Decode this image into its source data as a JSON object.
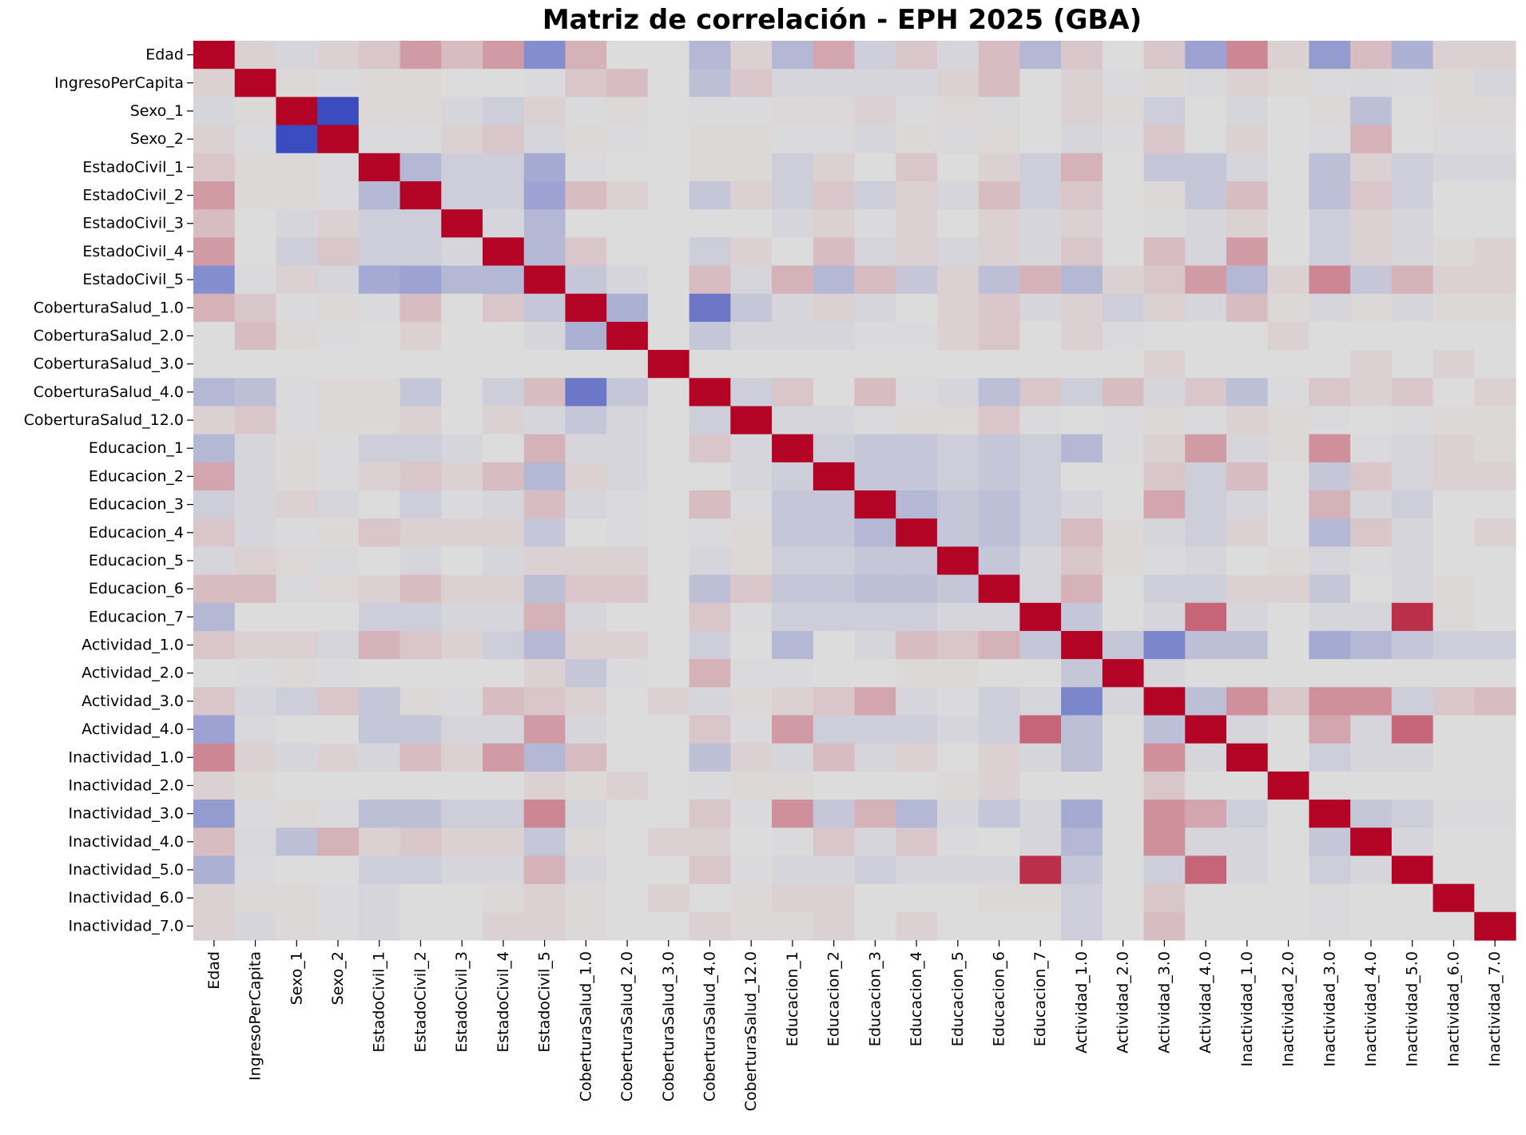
{
  "chart_data": {
    "type": "heatmap",
    "title": "Matriz de correlación - EPH 2025 (GBA)",
    "xlabel": "",
    "ylabel": "",
    "colormap": "coolwarm",
    "colormap_endpoints": {
      "low": "#3b4cc0",
      "mid": "#dddcdc",
      "high": "#b40426"
    },
    "value_range": [
      -1,
      1
    ],
    "colorbar": false,
    "labels": [
      "Edad",
      "IngresoPerCapita",
      "Sexo_1",
      "Sexo_2",
      "EstadoCivil_1",
      "EstadoCivil_2",
      "EstadoCivil_3",
      "EstadoCivil_4",
      "EstadoCivil_5",
      "CoberturaSalud_1.0",
      "CoberturaSalud_2.0",
      "CoberturaSalud_3.0",
      "CoberturaSalud_4.0",
      "CoberturaSalud_12.0",
      "Educacion_1",
      "Educacion_2",
      "Educacion_3",
      "Educacion_4",
      "Educacion_5",
      "Educacion_6",
      "Educacion_7",
      "Actividad_1.0",
      "Actividad_2.0",
      "Actividad_3.0",
      "Actividad_4.0",
      "Inactividad_1.0",
      "Inactividad_2.0",
      "Inactividad_3.0",
      "Inactividad_4.0",
      "Inactividad_5.0",
      "Inactividad_6.0",
      "Inactividad_7.0"
    ],
    "matrix": [
      [
        1,
        0.05,
        -0.05,
        0.05,
        0.1,
        0.3,
        0.15,
        0.3,
        -0.55,
        0.2,
        0,
        0,
        -0.25,
        0.05,
        -0.25,
        0.25,
        -0.1,
        0.1,
        -0.05,
        0.15,
        -0.25,
        0.1,
        0,
        0.1,
        -0.4,
        0.4,
        0.05,
        -0.45,
        0.15,
        -0.3,
        0.05,
        0.05
      ],
      [
        0.05,
        1,
        0.02,
        -0.02,
        0.02,
        0.02,
        0,
        0,
        -0.02,
        0.1,
        0.15,
        0,
        -0.2,
        0.1,
        -0.05,
        -0.05,
        -0.05,
        -0.05,
        0.05,
        0.15,
        0,
        0.05,
        -0.02,
        0.02,
        -0.03,
        0.05,
        0.02,
        -0.02,
        -0.03,
        -0.02,
        0.02,
        -0.05
      ],
      [
        -0.05,
        0.02,
        1,
        -1,
        0.02,
        0.02,
        -0.05,
        -0.1,
        0.05,
        -0.02,
        0.02,
        0,
        -0.02,
        -0.02,
        0.02,
        0.02,
        0.05,
        -0.02,
        0.03,
        -0.03,
        0,
        0.05,
        0.02,
        -0.1,
        0,
        -0.05,
        0,
        0.02,
        -0.2,
        0,
        0.02,
        0.02
      ],
      [
        0.05,
        -0.02,
        -1,
        1,
        -0.02,
        -0.02,
        0.05,
        0.1,
        -0.05,
        0.02,
        -0.02,
        0,
        0.02,
        0.02,
        -0.02,
        -0.02,
        -0.05,
        0.02,
        -0.03,
        0.03,
        0,
        -0.05,
        -0.02,
        0.1,
        0,
        0.05,
        0,
        -0.02,
        0.2,
        0,
        -0.02,
        -0.02
      ],
      [
        0.1,
        0.02,
        0.02,
        -0.02,
        1,
        -0.25,
        -0.1,
        -0.1,
        -0.35,
        -0.02,
        0,
        0,
        0.02,
        0.02,
        -0.1,
        0.05,
        0,
        0.1,
        0,
        0.05,
        -0.1,
        0.2,
        0,
        -0.15,
        -0.15,
        -0.05,
        0,
        -0.2,
        0.05,
        -0.1,
        -0.05,
        -0.05
      ],
      [
        0.3,
        0.02,
        0.02,
        -0.02,
        -0.25,
        1,
        -0.1,
        -0.1,
        -0.4,
        0.15,
        0.05,
        0,
        -0.15,
        0.05,
        -0.1,
        0.1,
        -0.1,
        0.05,
        -0.05,
        0.15,
        -0.1,
        0.1,
        0,
        0.02,
        -0.15,
        0.15,
        0,
        -0.2,
        0.1,
        -0.1,
        0,
        0
      ],
      [
        0.15,
        0,
        -0.05,
        0.05,
        -0.1,
        -0.1,
        1,
        -0.05,
        -0.25,
        0,
        0,
        0,
        0,
        0,
        -0.05,
        0.05,
        -0.02,
        0.05,
        0,
        0.05,
        -0.05,
        0.05,
        0,
        -0.02,
        -0.05,
        0.05,
        0,
        -0.1,
        0.05,
        -0.05,
        0,
        0
      ],
      [
        0.3,
        0,
        -0.1,
        0.1,
        -0.1,
        -0.1,
        -0.05,
        1,
        -0.25,
        0.1,
        0,
        0,
        -0.1,
        0.05,
        0,
        0.15,
        -0.05,
        0.05,
        -0.05,
        0.05,
        -0.05,
        0.1,
        0,
        0.15,
        -0.05,
        0.3,
        0,
        -0.1,
        0.05,
        -0.05,
        0.02,
        0.05
      ],
      [
        -0.55,
        -0.02,
        0.05,
        -0.05,
        -0.35,
        -0.4,
        -0.25,
        -0.25,
        1,
        -0.15,
        -0.05,
        0,
        0.15,
        -0.05,
        0.2,
        -0.25,
        0.15,
        -0.15,
        0.05,
        -0.2,
        0.2,
        -0.25,
        0.05,
        0.1,
        0.3,
        -0.25,
        0.05,
        0.4,
        -0.15,
        0.2,
        0.05,
        0.05
      ],
      [
        0.2,
        0.1,
        -0.02,
        0.02,
        -0.02,
        0.15,
        0,
        0.1,
        -0.15,
        1,
        -0.3,
        0,
        -0.7,
        -0.15,
        -0.05,
        0.05,
        -0.05,
        0,
        0.05,
        0.1,
        -0.05,
        0.05,
        -0.1,
        0.05,
        -0.05,
        0.15,
        0.02,
        -0.05,
        0.02,
        -0.05,
        0.02,
        0.02
      ],
      [
        0,
        0.15,
        0.02,
        -0.02,
        0,
        0.05,
        0,
        0,
        -0.05,
        -0.3,
        1,
        0,
        -0.15,
        -0.05,
        -0.05,
        -0.05,
        -0.02,
        -0.02,
        0.05,
        0.1,
        0,
        0.05,
        -0.02,
        0,
        0,
        0,
        0.05,
        0,
        0,
        0,
        0,
        0
      ],
      [
        0,
        0,
        0,
        0,
        0,
        0,
        0,
        0,
        0,
        0,
        0,
        1,
        0,
        0,
        0,
        0,
        0,
        0,
        0,
        0,
        0,
        0,
        0,
        0.05,
        0,
        0,
        0,
        0,
        0.05,
        0,
        0.05,
        0
      ],
      [
        -0.25,
        -0.2,
        -0.02,
        0.02,
        0.02,
        -0.15,
        0,
        -0.1,
        0.15,
        -0.7,
        -0.15,
        0,
        1,
        -0.1,
        0.1,
        0,
        0.15,
        -0.02,
        -0.05,
        -0.2,
        0.1,
        -0.1,
        0.15,
        -0.05,
        0.1,
        -0.2,
        -0.02,
        0.1,
        0.05,
        0.1,
        0,
        0.05
      ],
      [
        0.05,
        0.1,
        -0.02,
        0.02,
        0.02,
        0.05,
        0,
        0.05,
        -0.05,
        -0.15,
        -0.05,
        0,
        -0.1,
        1,
        -0.05,
        -0.05,
        -0.02,
        0.02,
        0.02,
        0.1,
        -0.02,
        0,
        -0.02,
        0.02,
        -0.02,
        0.05,
        0.02,
        -0.02,
        0,
        -0.02,
        0.02,
        0.02
      ],
      [
        -0.25,
        -0.05,
        0.02,
        -0.02,
        -0.1,
        -0.1,
        -0.05,
        0,
        0.2,
        -0.05,
        -0.05,
        0,
        0.1,
        -0.05,
        1,
        -0.1,
        -0.15,
        -0.15,
        -0.1,
        -0.15,
        -0.1,
        -0.25,
        -0.02,
        0.05,
        0.3,
        -0.05,
        0.02,
        0.35,
        -0.02,
        -0.05,
        0.05,
        0.02
      ],
      [
        0.25,
        -0.05,
        0.02,
        -0.02,
        0.05,
        0.1,
        0.05,
        0.15,
        -0.25,
        0.05,
        -0.05,
        0,
        0,
        -0.05,
        -0.1,
        1,
        -0.15,
        -0.15,
        -0.1,
        -0.15,
        -0.1,
        0,
        0,
        0.1,
        -0.1,
        0.15,
        0,
        -0.15,
        0.1,
        -0.05,
        0.05,
        0.05
      ],
      [
        -0.1,
        -0.05,
        0.05,
        -0.05,
        0,
        -0.1,
        -0.02,
        -0.05,
        0.15,
        -0.05,
        -0.02,
        0,
        0.15,
        -0.02,
        -0.15,
        -0.15,
        1,
        -0.25,
        -0.15,
        -0.2,
        -0.1,
        -0.05,
        0,
        0.25,
        -0.1,
        -0.05,
        0,
        0.2,
        -0.05,
        -0.1,
        0,
        0
      ],
      [
        0.1,
        -0.05,
        -0.02,
        0.02,
        0.1,
        0.05,
        0.05,
        0.05,
        -0.15,
        0,
        -0.02,
        0,
        -0.02,
        0.02,
        -0.15,
        -0.15,
        -0.25,
        1,
        -0.15,
        -0.2,
        -0.1,
        0.15,
        0.02,
        -0.05,
        -0.1,
        0.05,
        0,
        -0.25,
        0.1,
        -0.05,
        0,
        0.05
      ],
      [
        -0.05,
        0.05,
        0.03,
        -0.03,
        0,
        -0.05,
        0,
        -0.05,
        0.05,
        0.05,
        0.05,
        0,
        -0.05,
        0.02,
        -0.1,
        -0.1,
        -0.15,
        -0.15,
        1,
        -0.15,
        -0.05,
        0.1,
        0.02,
        -0.02,
        -0.05,
        0,
        0.02,
        -0.05,
        -0.02,
        -0.05,
        0,
        0
      ],
      [
        0.15,
        0.15,
        -0.03,
        0.03,
        0.05,
        0.15,
        0.05,
        0.05,
        -0.2,
        0.1,
        0.1,
        0,
        -0.2,
        0.1,
        -0.15,
        -0.15,
        -0.2,
        -0.2,
        -0.15,
        1,
        -0.05,
        0.2,
        0,
        -0.1,
        -0.1,
        0.05,
        0.05,
        -0.15,
        0,
        -0.05,
        0.02,
        0
      ],
      [
        -0.25,
        0,
        0,
        0,
        -0.1,
        -0.1,
        -0.05,
        -0.05,
        0.2,
        -0.05,
        0,
        0,
        0.1,
        -0.02,
        -0.1,
        -0.1,
        -0.1,
        -0.1,
        -0.05,
        -0.05,
        1,
        -0.15,
        0,
        -0.05,
        0.55,
        -0.05,
        0,
        -0.05,
        -0.05,
        0.8,
        0.02,
        0
      ],
      [
        0.1,
        0.05,
        0.05,
        -0.05,
        0.2,
        0.1,
        0.05,
        -0.1,
        -0.25,
        0.05,
        0.05,
        0,
        -0.1,
        0,
        -0.25,
        0,
        -0.05,
        0.15,
        0.1,
        0.2,
        -0.15,
        1,
        -0.15,
        -0.6,
        -0.2,
        -0.2,
        0,
        -0.35,
        -0.25,
        -0.15,
        -0.1,
        -0.1
      ],
      [
        0,
        -0.02,
        0.02,
        -0.02,
        0,
        0,
        0,
        0,
        0.05,
        -0.15,
        -0.02,
        0,
        0.2,
        -0.02,
        -0.02,
        0,
        0,
        0.02,
        0.02,
        0,
        0,
        -0.15,
        1,
        -0.05,
        0,
        0,
        0,
        0,
        0,
        0,
        0,
        0
      ],
      [
        0.1,
        -0.05,
        -0.1,
        0.1,
        -0.15,
        0.02,
        -0.02,
        0.15,
        0.1,
        0.05,
        0,
        0.05,
        -0.05,
        0.02,
        0.05,
        0.1,
        0.25,
        -0.05,
        -0.02,
        -0.1,
        -0.05,
        -0.6,
        -0.05,
        1,
        -0.2,
        0.35,
        0.1,
        0.35,
        0.35,
        -0.1,
        0.1,
        0.15
      ],
      [
        -0.4,
        -0.03,
        0,
        0,
        -0.15,
        -0.15,
        -0.05,
        -0.05,
        0.3,
        -0.05,
        0,
        0,
        0.1,
        -0.02,
        0.3,
        -0.1,
        -0.1,
        -0.1,
        -0.05,
        -0.1,
        0.55,
        -0.2,
        0,
        -0.2,
        1,
        -0.05,
        0,
        0.25,
        -0.05,
        0.55,
        0,
        0
      ],
      [
        0.4,
        0.05,
        -0.05,
        0.05,
        -0.05,
        0.15,
        0.05,
        0.3,
        -0.25,
        0.15,
        0,
        0,
        -0.2,
        0.05,
        -0.05,
        0.15,
        -0.05,
        0.05,
        0,
        0.05,
        -0.05,
        -0.2,
        0,
        0.35,
        -0.05,
        1,
        0,
        -0.1,
        -0.05,
        -0.05,
        0,
        0
      ],
      [
        0.05,
        0.02,
        0,
        0,
        0,
        0,
        0,
        0,
        0.05,
        0.02,
        0.05,
        0,
        -0.02,
        0.02,
        0.02,
        0,
        0,
        0,
        0.02,
        0.05,
        0,
        0,
        0,
        0.1,
        0,
        0,
        1,
        0,
        0,
        0,
        0,
        0
      ],
      [
        -0.45,
        -0.02,
        0.02,
        -0.02,
        -0.2,
        -0.2,
        -0.1,
        -0.1,
        0.4,
        -0.05,
        0,
        0,
        0.1,
        -0.02,
        0.35,
        -0.15,
        0.2,
        -0.25,
        -0.05,
        -0.15,
        -0.05,
        -0.35,
        0,
        0.35,
        0.25,
        -0.1,
        0,
        1,
        -0.15,
        -0.1,
        -0.02,
        -0.02
      ],
      [
        0.15,
        -0.03,
        -0.2,
        0.2,
        0.05,
        0.1,
        0.05,
        0.05,
        -0.15,
        0.02,
        0,
        0.05,
        0.05,
        0,
        -0.02,
        0.1,
        -0.05,
        0.1,
        -0.02,
        0,
        -0.05,
        -0.25,
        0,
        0.35,
        -0.05,
        -0.05,
        0,
        -0.15,
        1,
        -0.05,
        0,
        0
      ],
      [
        -0.3,
        -0.02,
        0,
        0,
        -0.1,
        -0.1,
        -0.05,
        -0.05,
        0.2,
        -0.05,
        0,
        0,
        0.1,
        -0.02,
        -0.05,
        -0.05,
        -0.1,
        -0.05,
        -0.05,
        -0.05,
        0.8,
        -0.15,
        0,
        -0.1,
        0.55,
        -0.05,
        0,
        -0.1,
        -0.05,
        1,
        0,
        0
      ],
      [
        0.05,
        0.02,
        0.02,
        -0.02,
        -0.05,
        0,
        0,
        0.02,
        0.05,
        0.02,
        0,
        0.05,
        0,
        0.02,
        0.05,
        0.05,
        0,
        0,
        0,
        0.02,
        0.02,
        -0.1,
        0,
        0.1,
        0,
        0,
        0,
        -0.02,
        0,
        0,
        1,
        0
      ],
      [
        0.05,
        -0.05,
        0.02,
        -0.02,
        -0.05,
        0,
        0,
        0.05,
        0.05,
        0.02,
        0,
        0,
        0.05,
        0.02,
        0.02,
        0.05,
        0,
        0.05,
        0,
        0,
        0,
        -0.1,
        0,
        0.15,
        0,
        0,
        0,
        -0.02,
        0,
        0,
        0,
        1
      ]
    ]
  }
}
